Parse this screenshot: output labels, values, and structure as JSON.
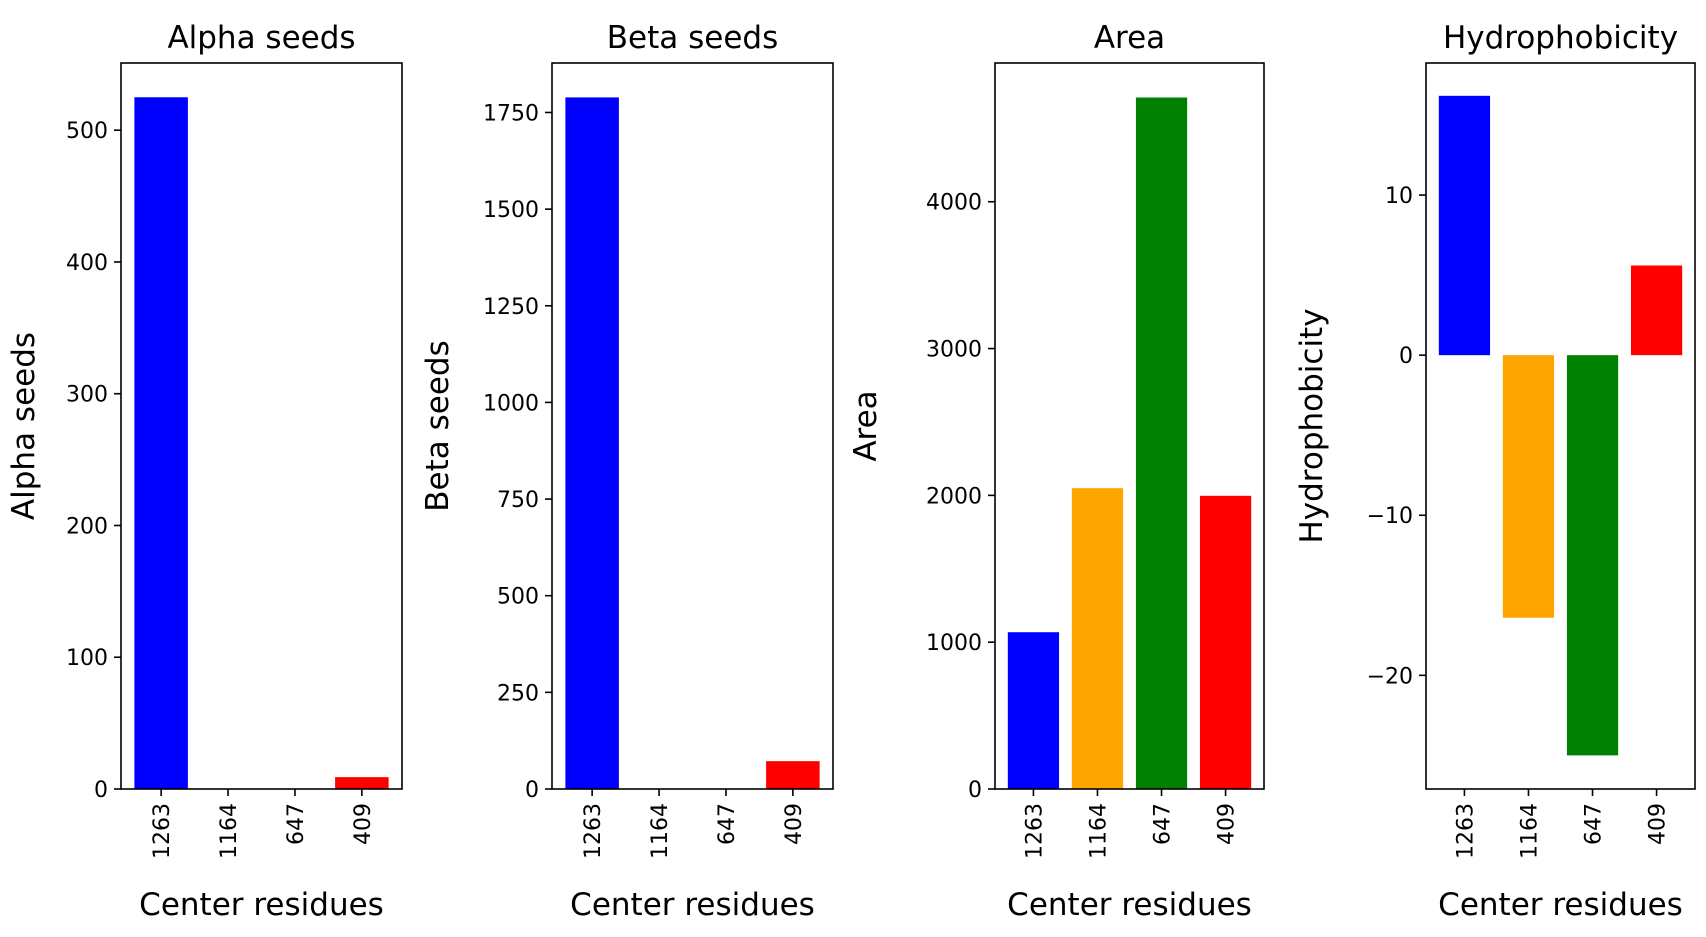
{
  "colors": {
    "1263": "#0000ff",
    "1164": "#ffa500",
    "647": "#008000",
    "409": "#ff0000",
    "axes": "#000000",
    "background": "#ffffff"
  },
  "chart_data": [
    {
      "type": "bar",
      "title": "Alpha seeds",
      "xlabel": "Center residues",
      "ylabel": "Alpha seeds",
      "categories": [
        "1263",
        "1164",
        "647",
        "409"
      ],
      "values": [
        525,
        0,
        0,
        9
      ],
      "ylim": [
        0,
        551
      ],
      "yticks": [
        0,
        100,
        200,
        300,
        400,
        500
      ],
      "ytick_labels": [
        "0",
        "100",
        "200",
        "300",
        "400",
        "500"
      ],
      "grid": false,
      "legend": "none"
    },
    {
      "type": "bar",
      "title": "Beta seeds",
      "xlabel": "Center residues",
      "ylabel": "Beta seeds",
      "categories": [
        "1263",
        "1164",
        "647",
        "409"
      ],
      "values": [
        1789,
        0,
        0,
        72
      ],
      "ylim": [
        0,
        1878
      ],
      "yticks": [
        0,
        250,
        500,
        750,
        1000,
        1250,
        1500,
        1750
      ],
      "ytick_labels": [
        "0",
        "250",
        "500",
        "750",
        "1000",
        "1250",
        "1500",
        "1750"
      ],
      "grid": false,
      "legend": "none"
    },
    {
      "type": "bar",
      "title": "Area",
      "xlabel": "Center residues",
      "ylabel": "Area",
      "categories": [
        "1263",
        "1164",
        "647",
        "409"
      ],
      "values": [
        1068,
        2049,
        4710,
        1997
      ],
      "ylim": [
        0,
        4945
      ],
      "yticks": [
        0,
        1000,
        2000,
        3000,
        4000
      ],
      "ytick_labels": [
        "0",
        "1000",
        "2000",
        "3000",
        "4000"
      ],
      "grid": false,
      "legend": "none"
    },
    {
      "type": "bar",
      "title": "Hydrophobicity",
      "xlabel": "Center residues",
      "ylabel": "Hydrophobicity",
      "categories": [
        "1263",
        "1164",
        "647",
        "409"
      ],
      "values": [
        16.2,
        -16.4,
        -25.0,
        5.6
      ],
      "ylim": [
        -27.1,
        18.25
      ],
      "yticks": [
        -20,
        -10,
        0,
        10
      ],
      "ytick_labels": [
        "−20",
        "−10",
        "0",
        "10"
      ],
      "grid": false,
      "legend": "none"
    }
  ]
}
